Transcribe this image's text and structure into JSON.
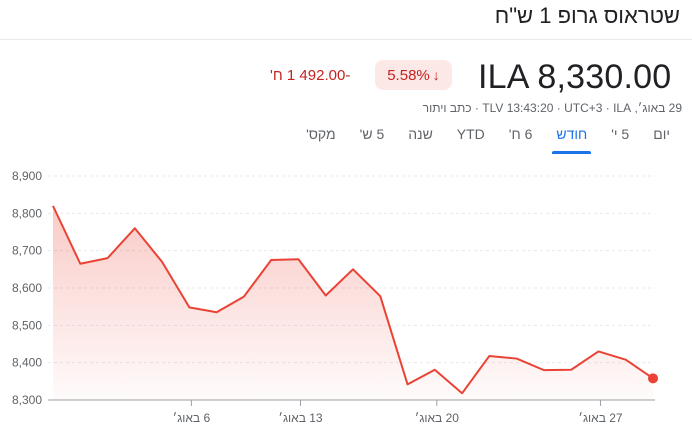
{
  "header": {
    "title": "שטראוס גרופ 1 ש\"ח"
  },
  "quote": {
    "price": "ILA 8,330.00",
    "change_percent": "5.58%",
    "change_arrow": "↓",
    "change_abs": "-492.00 1 ח'",
    "meta": "29 באוג׳, TLV 13:43:20 · UTC+3 · ILA · כתב ויתור",
    "colors": {
      "down": "#c5221f",
      "line": "#ea4335",
      "accent": "#1a73e8"
    }
  },
  "tabs": [
    {
      "label": "יום",
      "active": false
    },
    {
      "label": "5 י'",
      "active": false
    },
    {
      "label": "חודש",
      "active": true
    },
    {
      "label": "6 ח'",
      "active": false
    },
    {
      "label": "YTD",
      "active": false
    },
    {
      "label": "שנה",
      "active": false
    },
    {
      "label": "5 ש'",
      "active": false
    },
    {
      "label": "מקס'",
      "active": false
    }
  ],
  "chart_data": {
    "type": "line",
    "series": [
      {
        "values": [
          8820,
          8665,
          8680,
          8760,
          8670,
          8548,
          8535,
          8577,
          8675,
          8677,
          8580,
          8650,
          8578,
          8342,
          8381,
          8318,
          8418,
          8411,
          8380,
          8381,
          8430,
          8408,
          8358
        ]
      }
    ],
    "ylim": [
      8300,
      8900
    ],
    "yticks": [
      8300,
      8400,
      8500,
      8600,
      8700,
      8800,
      8900
    ],
    "ytick_labels": [
      "8,300",
      "8,400",
      "8,500",
      "8,600",
      "8,700",
      "8,800",
      "8,900"
    ],
    "xtick_labels": [
      {
        "label": "6 באוג׳",
        "index": 5
      },
      {
        "label": "13 באוג׳",
        "index": 9
      },
      {
        "label": "20 באוג׳",
        "index": 14
      },
      {
        "label": "27 באוג׳",
        "index": 20
      }
    ],
    "grid": true
  }
}
